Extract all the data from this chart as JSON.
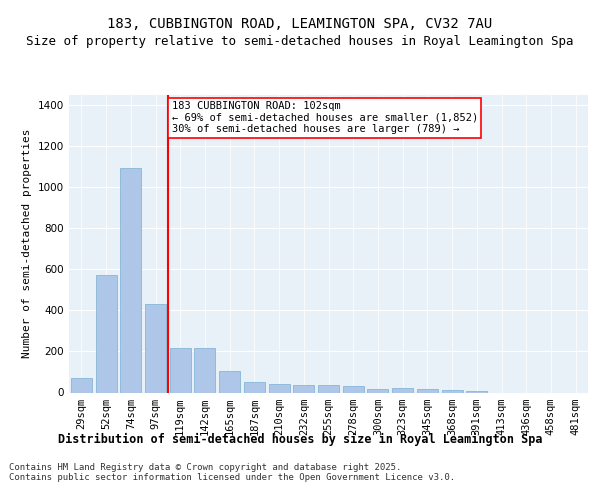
{
  "title": "183, CUBBINGTON ROAD, LEAMINGTON SPA, CV32 7AU",
  "subtitle": "Size of property relative to semi-detached houses in Royal Leamington Spa",
  "xlabel": "Distribution of semi-detached houses by size in Royal Leamington Spa",
  "ylabel": "Number of semi-detached properties",
  "categories": [
    "29sqm",
    "52sqm",
    "74sqm",
    "97sqm",
    "119sqm",
    "142sqm",
    "165sqm",
    "187sqm",
    "210sqm",
    "232sqm",
    "255sqm",
    "278sqm",
    "300sqm",
    "323sqm",
    "345sqm",
    "368sqm",
    "391sqm",
    "413sqm",
    "436sqm",
    "458sqm",
    "481sqm"
  ],
  "values": [
    70,
    575,
    1095,
    430,
    215,
    215,
    105,
    53,
    40,
    38,
    38,
    32,
    18,
    20,
    18,
    10,
    8,
    0,
    0,
    0,
    0
  ],
  "bar_color": "#aec6e8",
  "bar_edge_color": "#7aafd4",
  "vline_x": 3.5,
  "vline_color": "red",
  "annotation_text": "183 CUBBINGTON ROAD: 102sqm\n← 69% of semi-detached houses are smaller (1,852)\n30% of semi-detached houses are larger (789) →",
  "annotation_box_color": "white",
  "annotation_box_edge_color": "red",
  "ylim": [
    0,
    1450
  ],
  "yticks": [
    0,
    200,
    400,
    600,
    800,
    1000,
    1200,
    1400
  ],
  "background_color": "#e8f0f8",
  "footer": "Contains HM Land Registry data © Crown copyright and database right 2025.\nContains public sector information licensed under the Open Government Licence v3.0.",
  "title_fontsize": 10,
  "subtitle_fontsize": 9,
  "xlabel_fontsize": 8.5,
  "ylabel_fontsize": 8,
  "tick_fontsize": 7.5,
  "annotation_fontsize": 7.5,
  "footer_fontsize": 6.5
}
